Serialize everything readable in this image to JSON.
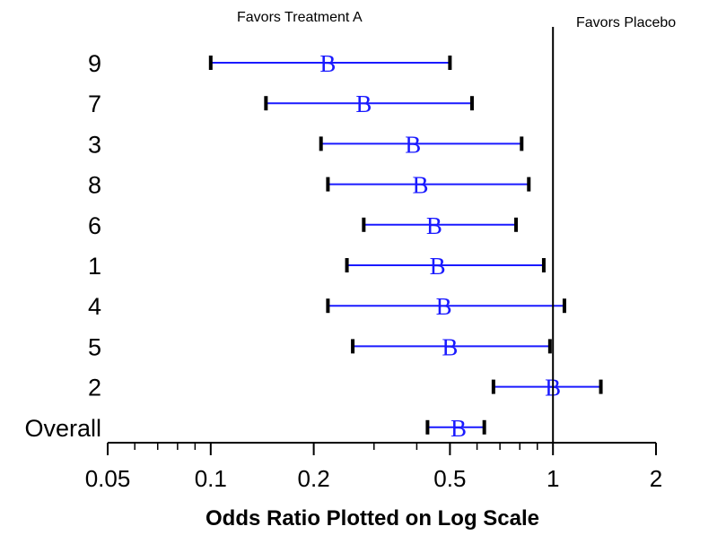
{
  "chart_data": {
    "type": "forest",
    "title": "",
    "xlabel": "Odds Ratio Plotted on Log Scale",
    "ylabel": "",
    "x_scale": "log",
    "xlim": [
      0.05,
      2
    ],
    "x_ticks": [
      0.05,
      0.1,
      0.2,
      0.5,
      1,
      2
    ],
    "x_tick_labels": [
      "0.05",
      "0.1",
      "0.2",
      "0.5",
      "1",
      "2"
    ],
    "reference_line": 1,
    "annotations": {
      "left": "Favors Treatment A",
      "right": "Favors Placebo"
    },
    "marker": "B",
    "colors": {
      "interval": "#1a1aff",
      "marker": "#1a1aff",
      "caps": "#000000",
      "axis": "#000000"
    },
    "rows": [
      {
        "label": "9",
        "estimate": 0.22,
        "lower": 0.1,
        "upper": 0.5
      },
      {
        "label": "7",
        "estimate": 0.28,
        "lower": 0.145,
        "upper": 0.58
      },
      {
        "label": "3",
        "estimate": 0.39,
        "lower": 0.21,
        "upper": 0.81
      },
      {
        "label": "8",
        "estimate": 0.41,
        "lower": 0.22,
        "upper": 0.85
      },
      {
        "label": "6",
        "estimate": 0.45,
        "lower": 0.28,
        "upper": 0.78
      },
      {
        "label": "1",
        "estimate": 0.46,
        "lower": 0.25,
        "upper": 0.94
      },
      {
        "label": "4",
        "estimate": 0.48,
        "lower": 0.22,
        "upper": 1.08
      },
      {
        "label": "5",
        "estimate": 0.5,
        "lower": 0.26,
        "upper": 0.98
      },
      {
        "label": "2",
        "estimate": 1.0,
        "lower": 0.67,
        "upper": 1.38
      },
      {
        "label": "Overall",
        "estimate": 0.53,
        "lower": 0.43,
        "upper": 0.63
      }
    ]
  }
}
